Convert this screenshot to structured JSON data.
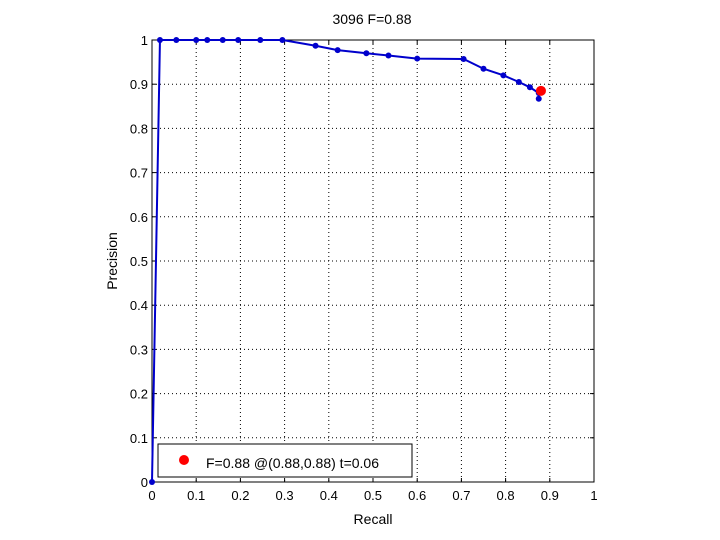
{
  "chart_data": {
    "type": "line",
    "title": "3096 F=0.88",
    "xlabel": "Recall",
    "ylabel": "Precision",
    "xlim": [
      0,
      1
    ],
    "ylim": [
      0,
      1
    ],
    "xticks": [
      "0",
      "0.1",
      "0.2",
      "0.3",
      "0.4",
      "0.5",
      "0.6",
      "0.7",
      "0.8",
      "0.9",
      "1"
    ],
    "yticks": [
      "0",
      "0.1",
      "0.2",
      "0.3",
      "0.4",
      "0.5",
      "0.6",
      "0.7",
      "0.8",
      "0.9",
      "1"
    ],
    "grid": true,
    "legend_position": "bottom-left",
    "series": [
      {
        "color": "#0000cc",
        "x": [
          0.0,
          0.018,
          0.055,
          0.1,
          0.125,
          0.16,
          0.195,
          0.245,
          0.295,
          0.37,
          0.42,
          0.485,
          0.535,
          0.6,
          0.705,
          0.75,
          0.795,
          0.83,
          0.855,
          0.875,
          0.875
        ],
        "y": [
          0.0,
          1.0,
          1.0,
          1.0,
          1.0,
          1.0,
          1.0,
          1.0,
          1.0,
          0.987,
          0.977,
          0.97,
          0.965,
          0.958,
          0.957,
          0.935,
          0.92,
          0.905,
          0.893,
          0.88,
          0.867
        ]
      }
    ],
    "highlight_point": {
      "x": 0.88,
      "y": 0.885,
      "color": "#ff0000",
      "legend_label": "F=0.88 @(0.88,0.88) t=0.06"
    }
  }
}
